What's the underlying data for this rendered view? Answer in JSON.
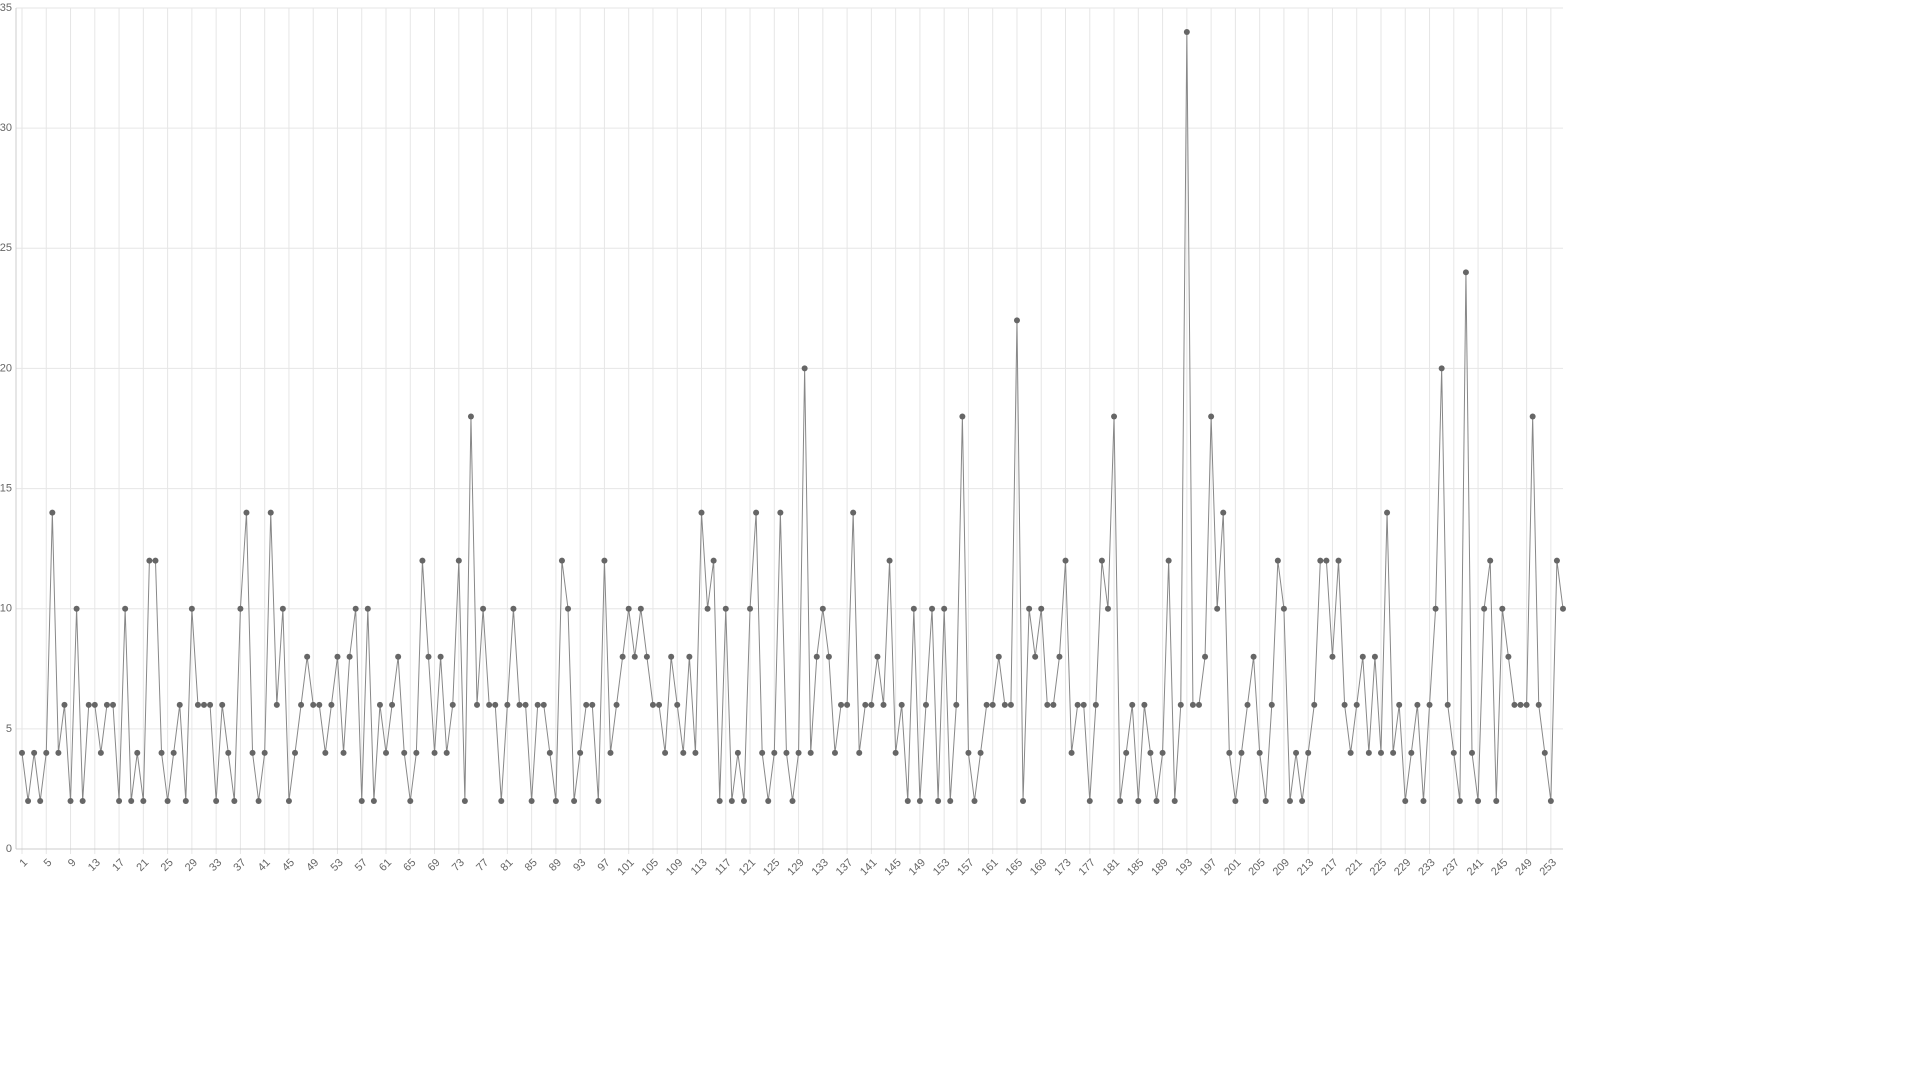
{
  "chart_data": {
    "type": "line",
    "categories": [
      1,
      null,
      null,
      null,
      5,
      null,
      null,
      null,
      9,
      null,
      null,
      null,
      13,
      null,
      null,
      null,
      17,
      null,
      null,
      null,
      21,
      null,
      null,
      null,
      25,
      null,
      null,
      null,
      29,
      null,
      null,
      null,
      33,
      null,
      null,
      null,
      37,
      null,
      null,
      null,
      41,
      null,
      null,
      null,
      45,
      null,
      null,
      null,
      49,
      null,
      null,
      null,
      53,
      null,
      null,
      null,
      57,
      null,
      null,
      null,
      61,
      null,
      null,
      null,
      65,
      null,
      null,
      null,
      69,
      null,
      null,
      null,
      73,
      null,
      null,
      null,
      77,
      null,
      null,
      null,
      81,
      null,
      null,
      null,
      85,
      null,
      null,
      null,
      89,
      null,
      null,
      null,
      93,
      null,
      null,
      null,
      97,
      null,
      null,
      null,
      101,
      null,
      null,
      null,
      105,
      null,
      null,
      null,
      109,
      null,
      null,
      null,
      113,
      null,
      null,
      null,
      117,
      null,
      null,
      null,
      121,
      null,
      null,
      null,
      125,
      null,
      null,
      null,
      129,
      null,
      null,
      null,
      133,
      null,
      null,
      null,
      137,
      null,
      null,
      null,
      141,
      null,
      null,
      null,
      145,
      null,
      null,
      null,
      149,
      null,
      null,
      null,
      153,
      null,
      null,
      null,
      157,
      null,
      null,
      null,
      161,
      null,
      null,
      null,
      165,
      null,
      null,
      null,
      169,
      null,
      null,
      null,
      173,
      null,
      null,
      null,
      177,
      null,
      null,
      null,
      181,
      null,
      null,
      null,
      185,
      null,
      null,
      null,
      189,
      null,
      null,
      null,
      193,
      null,
      null,
      null,
      197,
      null,
      null,
      null,
      201,
      null,
      null,
      null,
      205,
      null,
      null,
      null,
      209,
      null,
      null,
      null,
      213,
      null,
      null,
      null,
      217,
      null,
      null,
      null,
      221,
      null,
      null,
      null,
      225,
      null,
      null,
      null,
      229,
      null,
      null,
      null,
      233,
      null,
      null,
      null,
      237,
      null,
      null,
      null,
      241,
      null,
      null,
      null,
      245,
      null,
      null,
      null,
      249,
      null,
      null,
      null,
      253,
      null,
      null
    ],
    "values": [
      4,
      2,
      4,
      2,
      4,
      14,
      4,
      6,
      2,
      10,
      2,
      6,
      6,
      4,
      6,
      6,
      2,
      10,
      2,
      4,
      2,
      12,
      12,
      4,
      2,
      4,
      6,
      2,
      10,
      6,
      6,
      6,
      2,
      6,
      4,
      2,
      10,
      14,
      4,
      2,
      4,
      14,
      6,
      10,
      2,
      4,
      6,
      8,
      6,
      6,
      4,
      6,
      8,
      4,
      8,
      10,
      2,
      10,
      2,
      6,
      4,
      6,
      8,
      4,
      2,
      4,
      12,
      8,
      4,
      8,
      4,
      6,
      12,
      2,
      18,
      6,
      10,
      6,
      6,
      2,
      6,
      10,
      6,
      6,
      2,
      6,
      6,
      4,
      2,
      12,
      10,
      2,
      4,
      6,
      6,
      2,
      12,
      4,
      6,
      8,
      10,
      8,
      10,
      8,
      6,
      6,
      4,
      8,
      6,
      4,
      8,
      4,
      14,
      10,
      12,
      2,
      10,
      2,
      4,
      2,
      10,
      14,
      4,
      2,
      4,
      14,
      4,
      2,
      4,
      20,
      4,
      8,
      10,
      8,
      4,
      6,
      6,
      14,
      4,
      6,
      6,
      8,
      6,
      12,
      4,
      6,
      2,
      10,
      2,
      6,
      10,
      2,
      10,
      2,
      6,
      18,
      4,
      2,
      4,
      6,
      6,
      8,
      6,
      6,
      22,
      2,
      10,
      8,
      10,
      6,
      6,
      8,
      12,
      4,
      6,
      6,
      2,
      6,
      12,
      10,
      18,
      2,
      4,
      6,
      2,
      6,
      4,
      2,
      4,
      12,
      2,
      6,
      34,
      6,
      6,
      8,
      18,
      10,
      14,
      4,
      2,
      4,
      6,
      8,
      4,
      2,
      6,
      12,
      10,
      2,
      4,
      2,
      4,
      6,
      12,
      12,
      8,
      12,
      6,
      4,
      6,
      8,
      4,
      8,
      4,
      14,
      4,
      6,
      2,
      4,
      6,
      2,
      6,
      10,
      20,
      6,
      4,
      2,
      24,
      4,
      2,
      10,
      12,
      2,
      10,
      8,
      6,
      6,
      6,
      18,
      6,
      4,
      2,
      12,
      10
    ],
    "color": "#666666",
    "ylim": [
      0,
      35
    ],
    "yticks": [
      0,
      5,
      10,
      15,
      20,
      25,
      30,
      35
    ],
    "grid": true
  }
}
